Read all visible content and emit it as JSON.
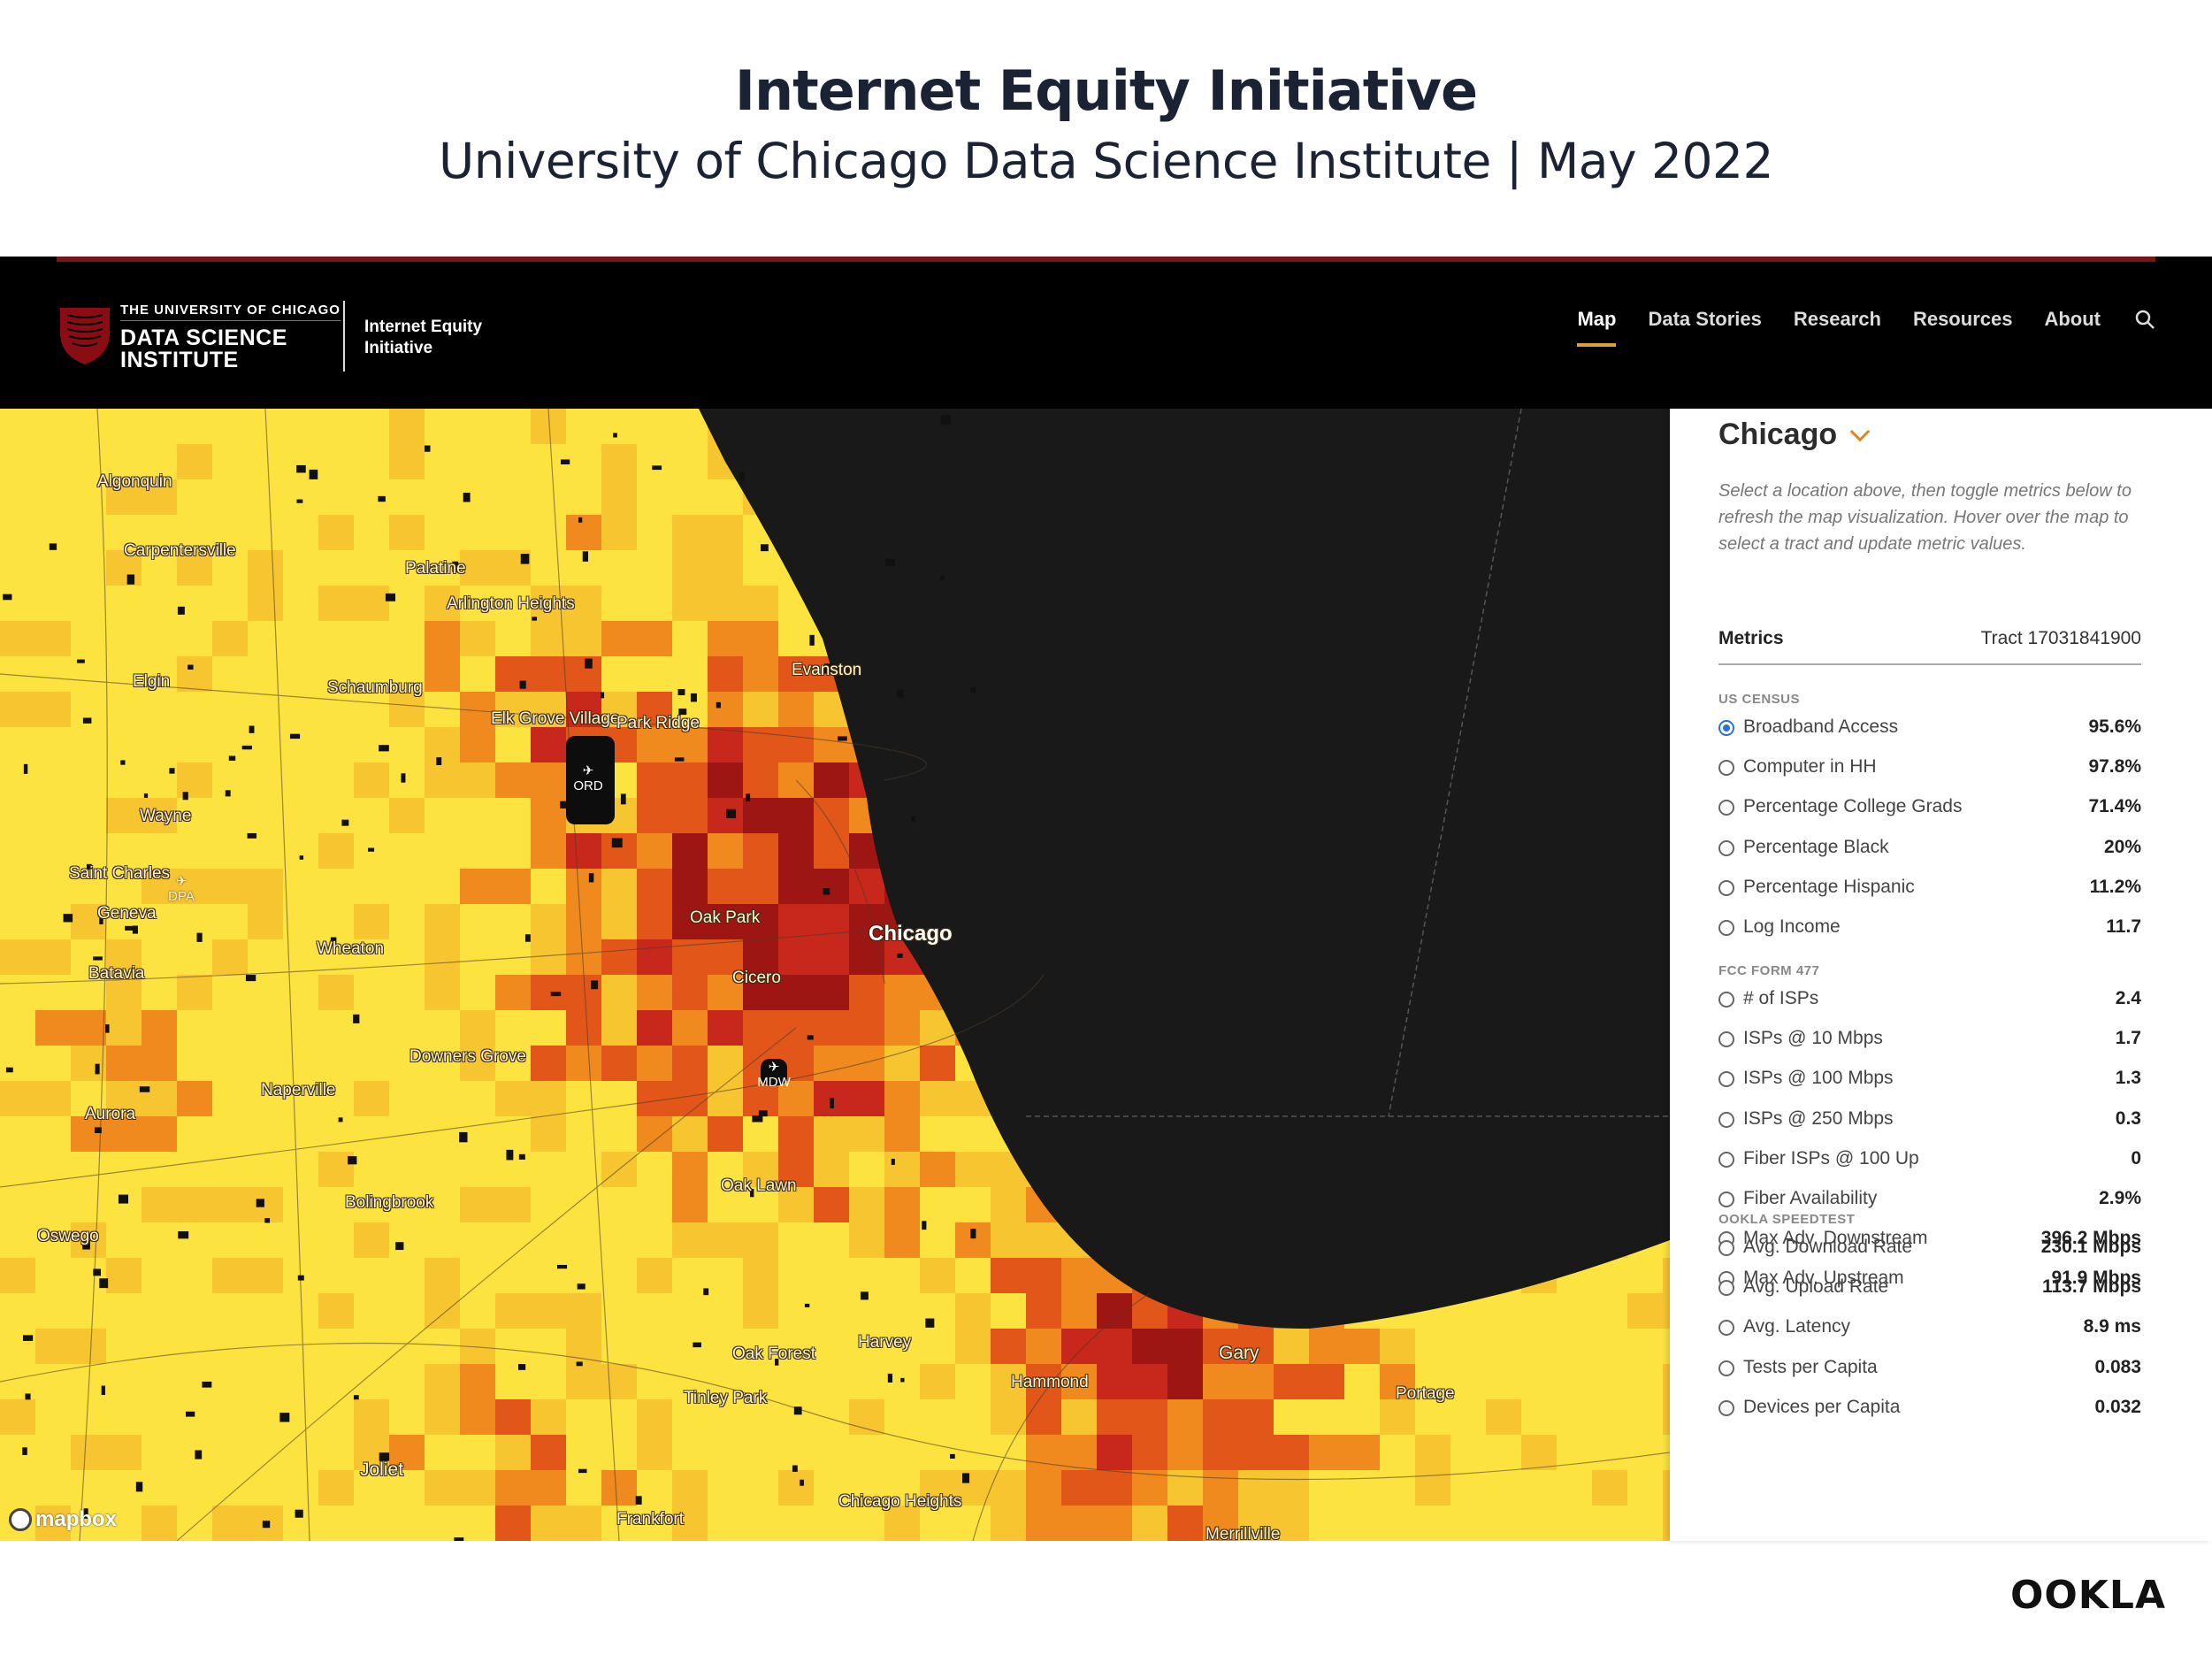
{
  "heading": {
    "title": "Internet Equity Initiative",
    "subtitle": "University of Chicago Data Science Institute | May 2022"
  },
  "header": {
    "logo_top": "THE UNIVERSITY OF CHICAGO",
    "logo_main": "DATA SCIENCE INSTITUTE",
    "logo_project": "Internet Equity Initiative",
    "nav": [
      {
        "label": "Map",
        "active": true
      },
      {
        "label": "Data Stories"
      },
      {
        "label": "Research"
      },
      {
        "label": "Resources"
      },
      {
        "label": "About"
      }
    ],
    "search_icon": "search-icon"
  },
  "map": {
    "places": {
      "algonquin": "Algonquin",
      "carpentersville": "Carpentersville",
      "palatine": "Palatine",
      "arlington": "Arlington Heights",
      "elgin": "Elgin",
      "schaumburg": "Schaumburg",
      "evanston": "Evanston",
      "elk_grove": "Elk Grove Village",
      "park_ridge": "Park Ridge",
      "wayne": "Wayne",
      "saint_charles": "Saint Charles",
      "geneva": "Geneva",
      "batavia": "Batavia",
      "wheaton": "Wheaton",
      "oak_park": "Oak Park",
      "chicago": "Chicago",
      "cicero": "Cicero",
      "downers_grove": "Downers Grove",
      "naperville": "Naperville",
      "aurora": "Aurora",
      "oak_lawn": "Oak Lawn",
      "bolingbrook": "Bolingbrook",
      "oswego": "Oswego",
      "harvey": "Harvey",
      "oak_forest": "Oak Forest",
      "tinley_park": "Tinley Park",
      "hammond": "Hammond",
      "gary": "Gary",
      "portage": "Portage",
      "joliet": "Joliet",
      "frankfort": "Frankfort",
      "chicago_heights": "Chicago Heights",
      "merrillville": "Merrillville"
    },
    "airports": {
      "ord": "ORD",
      "mdw": "MDW",
      "dpa": "DPA"
    },
    "attribution": "mapbox",
    "colors": {
      "light_yellow": "#fde33f",
      "yellow": "#f7c530",
      "orange": "#f08a1e",
      "dark_orange": "#e2561a",
      "red": "#c8281b",
      "dark_red": "#9e1614",
      "lake": "#191919"
    }
  },
  "panel": {
    "location": "Chicago",
    "intro": "Select a location above, then toggle metrics below to refresh the map visualization. Hover over the map to select a tract and update metric values.",
    "metrics_label": "Metrics",
    "tract": "Tract 17031841900",
    "groups": [
      {
        "label": "US CENSUS",
        "items": [
          {
            "label": "Broadband Access",
            "value": "95.6%",
            "selected": true
          },
          {
            "label": "Computer in HH",
            "value": "97.8%"
          },
          {
            "label": "Percentage College Grads",
            "value": "71.4%"
          },
          {
            "label": "Percentage Black",
            "value": "20%"
          },
          {
            "label": "Percentage Hispanic",
            "value": "11.2%"
          },
          {
            "label": "Log Income",
            "value": "11.7"
          }
        ]
      },
      {
        "label": "FCC FORM 477",
        "items": [
          {
            "label": "# of ISPs",
            "value": "2.4"
          },
          {
            "label": "ISPs @ 10 Mbps",
            "value": "1.7"
          },
          {
            "label": "ISPs @ 100 Mbps",
            "value": "1.3"
          },
          {
            "label": "ISPs @ 250 Mbps",
            "value": "0.3"
          },
          {
            "label": "Fiber ISPs @ 100 Up",
            "value": "0"
          },
          {
            "label": "Fiber Availability",
            "value": "2.9%"
          },
          {
            "label": "Max Adv. Downstream",
            "value": "396.2 Mbps"
          },
          {
            "label": "Max Adv. Upstream",
            "value": "91.9 Mbps"
          }
        ]
      },
      {
        "label": "OOKLA SPEEDTEST",
        "items": [
          {
            "label": "Avg. Download Rate",
            "value": "230.1 Mbps"
          },
          {
            "label": "Avg. Upload Rate",
            "value": "113.7 Mbps"
          },
          {
            "label": "Avg. Latency",
            "value": "8.9 ms"
          },
          {
            "label": "Tests per Capita",
            "value": "0.083"
          },
          {
            "label": "Devices per Capita",
            "value": "0.032"
          }
        ]
      }
    ]
  },
  "footer": {
    "brand": "OOKLA"
  }
}
